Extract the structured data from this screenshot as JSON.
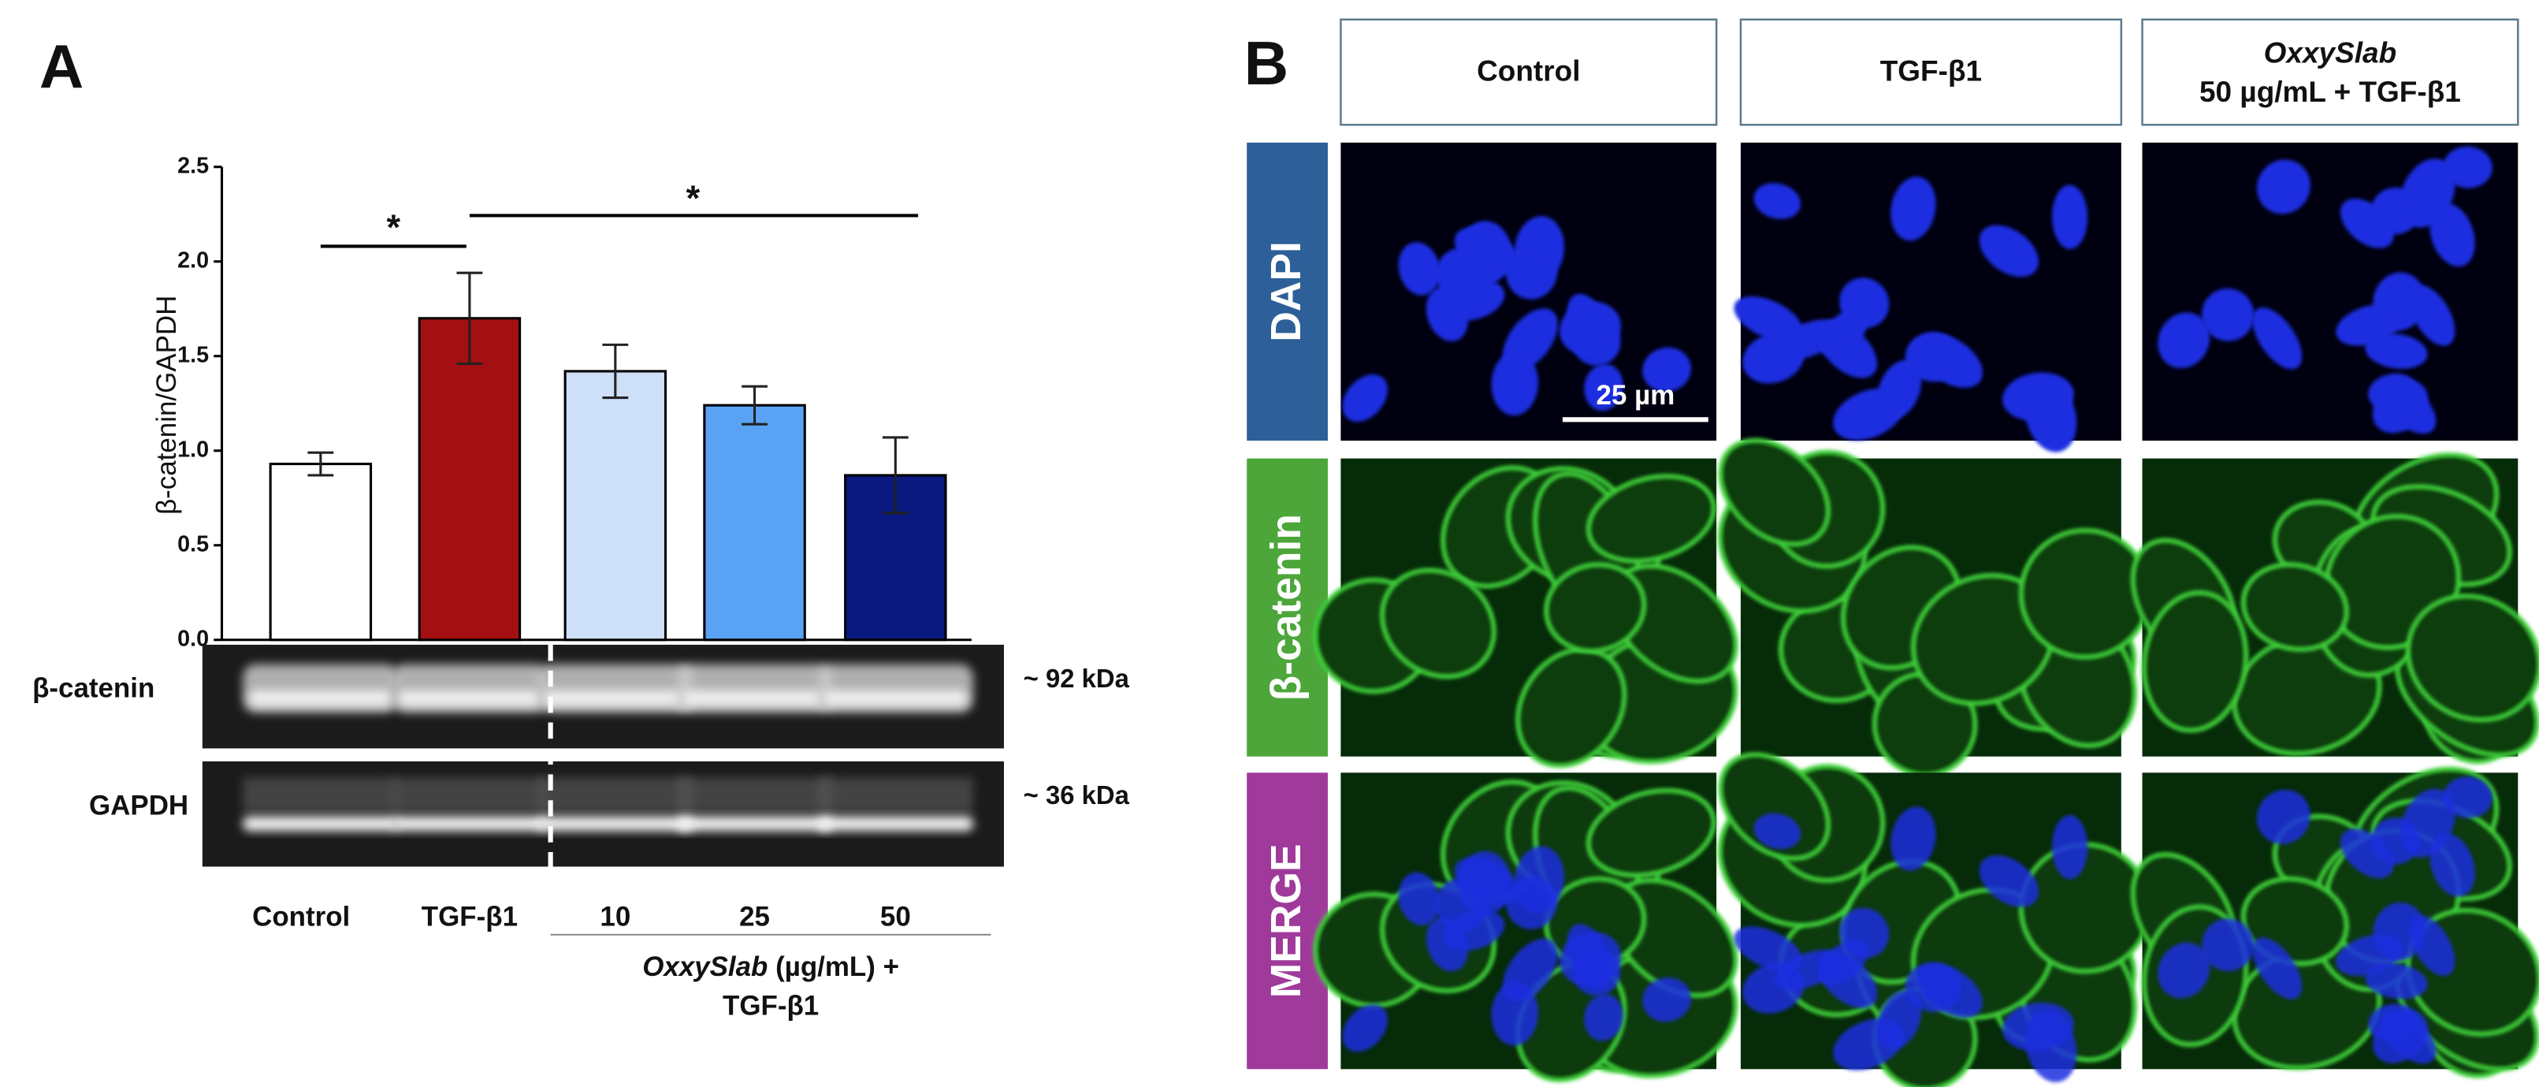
{
  "panels": [
    "A",
    "B"
  ],
  "chart_data": {
    "type": "bar",
    "ylabel": "β-catenin/GAPDH",
    "categories": [
      "Control",
      "TGF-β1",
      "10",
      "25",
      "50"
    ],
    "values": [
      0.93,
      1.7,
      1.42,
      1.24,
      0.87
    ],
    "errors": [
      0.06,
      0.24,
      0.14,
      0.1,
      0.2
    ],
    "colors": [
      "#ffffff",
      "#a30f12",
      "#cde0f8",
      "#5aa3f4",
      "#0b1a80"
    ],
    "ylim": [
      0,
      2.5
    ],
    "yticks": [
      {
        "value": 0,
        "label": "0.0"
      },
      {
        "value": 0.5,
        "label": "0.5"
      },
      {
        "value": 1,
        "label": "1.0"
      },
      {
        "value": 1.5,
        "label": "1.5"
      },
      {
        "value": 2,
        "label": "2.0"
      },
      {
        "value": 2.5,
        "label": "2.5"
      }
    ],
    "annotations": [
      "*",
      "*"
    ],
    "group_label": {
      "italic": "OxxySlab",
      "rest": " (µg/mL) +",
      "line2": "TGF-β1"
    }
  },
  "blot": {
    "rows": [
      {
        "label": "β-catenin",
        "size": "~ 92 kDa"
      },
      {
        "label": "GAPDH",
        "size": "~ 36 kDa"
      }
    ]
  },
  "microscopy": {
    "columns": [
      "Control",
      "TGF-β1"
    ],
    "column3": {
      "italic": "OxxySlab",
      "line2": "50 µg/mL + TGF-β1"
    },
    "rows": [
      "DAPI",
      "β-catenin",
      "MERGE"
    ],
    "scale_bar": "25 µm"
  }
}
